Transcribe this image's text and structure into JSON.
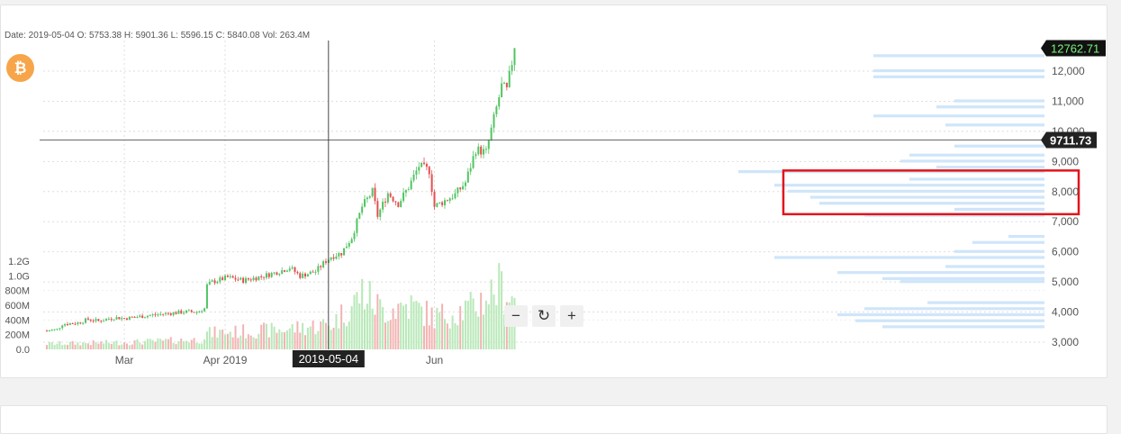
{
  "header": {
    "ohlc_text": "Date: 2019-05-04 O: 5753.38 H: 5901.36 L: 5596.15 C: 5840.08 Vol: 263.4M",
    "coin_icon": "bitcoin-icon",
    "coin_symbol": "₿"
  },
  "toolbar": {
    "zoom_out_label": "−",
    "reset_label": "↻",
    "zoom_in_label": "+"
  },
  "colors": {
    "up": "#52c462",
    "down": "#e34f4f",
    "up_volume": "#b8e8b8",
    "down_volume": "#f2b3b3",
    "profile": "#cfe5fa",
    "highlight": "#e3131b",
    "current_price_bg": "#1f9d3a",
    "crosshair_bg": "#222222"
  },
  "chart_data": {
    "type": "candlestick",
    "x_ticks": [
      "Mar",
      "Apr 2019",
      "Jun"
    ],
    "y_ticks": [
      "12,000",
      "11,000",
      "10,000",
      "9,000",
      "8,000",
      "7,000",
      "6,000",
      "5,000",
      "4,000",
      "3,000"
    ],
    "volume_ticks": [
      "1.2G",
      "1.0G",
      "800M",
      "600M",
      "400M",
      "200M",
      "0.0"
    ],
    "ylim": [
      2800,
      13000
    ],
    "volume_lim": [
      0,
      1300
    ],
    "current_price_label": "12762.71",
    "crosshair_price_label": "9711.73",
    "crosshair_date_label": "2019-05-04",
    "crosshair_price": 9711.73,
    "crosshair_index": 109,
    "highlight_band": [
      7250,
      8700
    ],
    "price_anchors": [
      [
        0,
        3380
      ],
      [
        4,
        3420
      ],
      [
        6,
        3600
      ],
      [
        12,
        3640
      ],
      [
        16,
        3760
      ],
      [
        20,
        3700
      ],
      [
        26,
        3820
      ],
      [
        30,
        3790
      ],
      [
        38,
        3870
      ],
      [
        45,
        3940
      ],
      [
        54,
        4010
      ],
      [
        58,
        4000
      ],
      [
        61,
        4120
      ],
      [
        62,
        4880
      ],
      [
        64,
        5000
      ],
      [
        70,
        5150
      ],
      [
        76,
        5050
      ],
      [
        84,
        5200
      ],
      [
        90,
        5350
      ],
      [
        94,
        5480
      ],
      [
        98,
        5200
      ],
      [
        104,
        5350
      ],
      [
        108,
        5700
      ],
      [
        110,
        5840
      ],
      [
        114,
        5960
      ],
      [
        118,
        6480
      ],
      [
        122,
        7500
      ],
      [
        126,
        8000
      ],
      [
        128,
        7200
      ],
      [
        132,
        7950
      ],
      [
        136,
        7600
      ],
      [
        140,
        8150
      ],
      [
        144,
        8850
      ],
      [
        148,
        8700
      ],
      [
        150,
        7500
      ],
      [
        154,
        7700
      ],
      [
        158,
        7900
      ],
      [
        162,
        8300
      ],
      [
        166,
        9400
      ],
      [
        170,
        9300
      ],
      [
        172,
        10050
      ],
      [
        176,
        11500
      ],
      [
        178,
        11350
      ],
      [
        181,
        12762
      ]
    ],
    "volume_anchors": [
      [
        0,
        80
      ],
      [
        30,
        100
      ],
      [
        60,
        140
      ],
      [
        62,
        230
      ],
      [
        90,
        280
      ],
      [
        110,
        360
      ],
      [
        118,
        620
      ],
      [
        122,
        820
      ],
      [
        130,
        560
      ],
      [
        140,
        640
      ],
      [
        150,
        460
      ],
      [
        165,
        600
      ],
      [
        175,
        900
      ],
      [
        181,
        740
      ]
    ],
    "volume_profile": [
      [
        12500,
        190
      ],
      [
        12000,
        190
      ],
      [
        11800,
        190
      ],
      [
        11000,
        100
      ],
      [
        10800,
        120
      ],
      [
        10500,
        190
      ],
      [
        10200,
        110
      ],
      [
        9500,
        100
      ],
      [
        9200,
        150
      ],
      [
        9000,
        160
      ],
      [
        8800,
        120
      ],
      [
        8650,
        340
      ],
      [
        8400,
        150
      ],
      [
        8200,
        300
      ],
      [
        8000,
        285
      ],
      [
        7800,
        260
      ],
      [
        7600,
        250
      ],
      [
        7400,
        100
      ],
      [
        7200,
        200
      ],
      [
        6500,
        40
      ],
      [
        6300,
        80
      ],
      [
        6000,
        100
      ],
      [
        5800,
        300
      ],
      [
        5500,
        110
      ],
      [
        5300,
        230
      ],
      [
        5100,
        180
      ],
      [
        5000,
        160
      ],
      [
        4300,
        130
      ],
      [
        4100,
        200
      ],
      [
        3900,
        230
      ],
      [
        3700,
        210
      ],
      [
        3500,
        180
      ]
    ]
  }
}
